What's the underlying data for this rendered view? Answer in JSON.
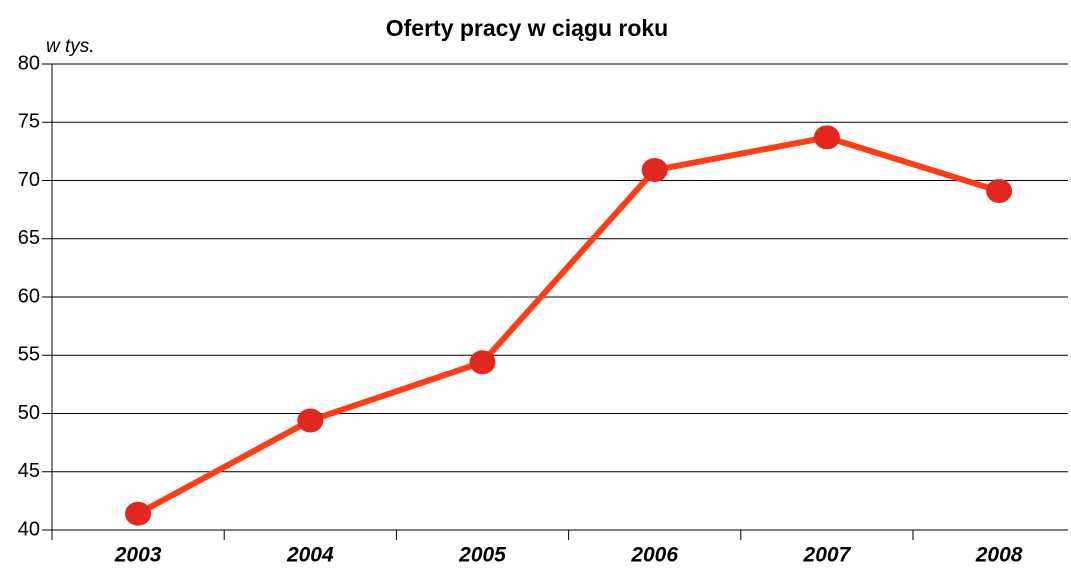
{
  "chart_data": {
    "type": "line",
    "title": "Oferty pracy w ciągu roku",
    "ylabel": "w tys.",
    "categories": [
      "2003",
      "2004",
      "2005",
      "2006",
      "2007",
      "2008"
    ],
    "series": [
      {
        "name": "Oferty pracy",
        "color": "#ff3c14",
        "marker_color": "#e0281e",
        "values": [
          41.4,
          49.4,
          54.4,
          70.9,
          73.7,
          69.1
        ]
      }
    ],
    "ylim": [
      40,
      80
    ],
    "yticks": [
      40,
      45,
      50,
      55,
      60,
      65,
      70,
      75,
      80
    ],
    "grid": true
  }
}
